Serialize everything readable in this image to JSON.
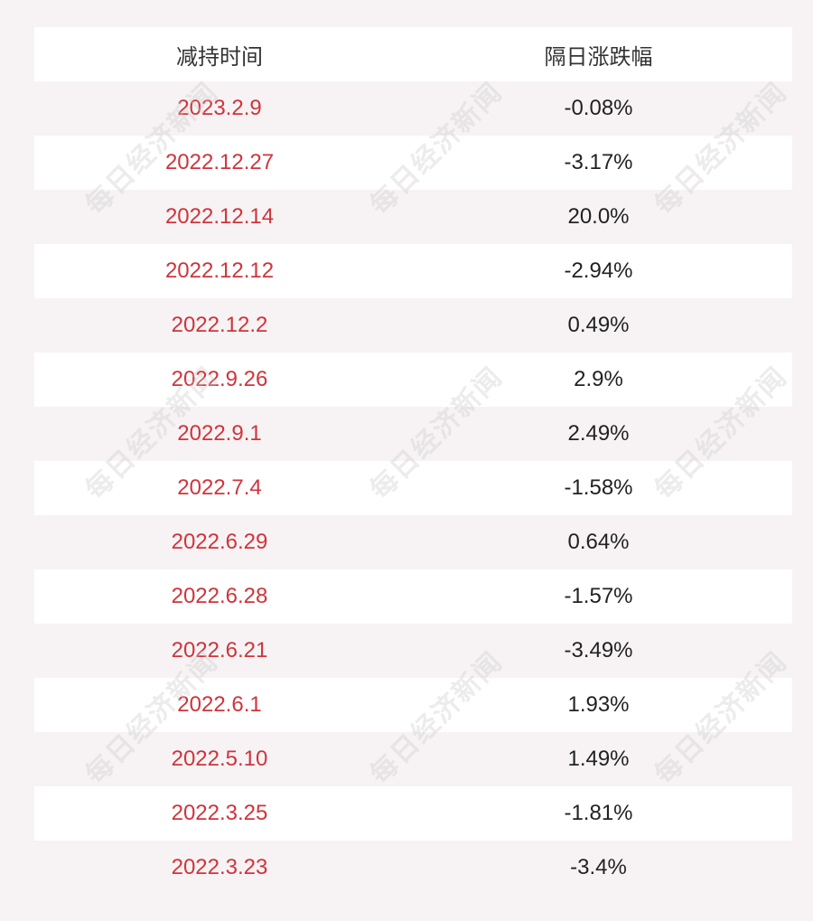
{
  "table": {
    "headers": {
      "date": "减持时间",
      "change": "隔日涨跌幅"
    },
    "rows": [
      {
        "date": "2023.2.9",
        "change": "-0.08%"
      },
      {
        "date": "2022.12.27",
        "change": "-3.17%"
      },
      {
        "date": "2022.12.14",
        "change": "20.0%"
      },
      {
        "date": "2022.12.12",
        "change": "-2.94%"
      },
      {
        "date": "2022.12.2",
        "change": "0.49%"
      },
      {
        "date": "2022.9.26",
        "change": "2.9%"
      },
      {
        "date": "2022.9.1",
        "change": "2.49%"
      },
      {
        "date": "2022.7.4",
        "change": "-1.58%"
      },
      {
        "date": "2022.6.29",
        "change": "0.64%"
      },
      {
        "date": "2022.6.28",
        "change": "-1.57%"
      },
      {
        "date": "2022.6.21",
        "change": "-3.49%"
      },
      {
        "date": "2022.6.1",
        "change": "1.93%"
      },
      {
        "date": "2022.5.10",
        "change": "1.49%"
      },
      {
        "date": "2022.3.25",
        "change": "-1.81%"
      },
      {
        "date": "2022.3.23",
        "change": "-3.4%"
      }
    ]
  },
  "watermark": {
    "text": "每日经济新闻"
  },
  "colors": {
    "background": "#f7f3f4",
    "row_alt": "#ffffff",
    "date_text": "#d0343b",
    "change_text": "#222222"
  }
}
